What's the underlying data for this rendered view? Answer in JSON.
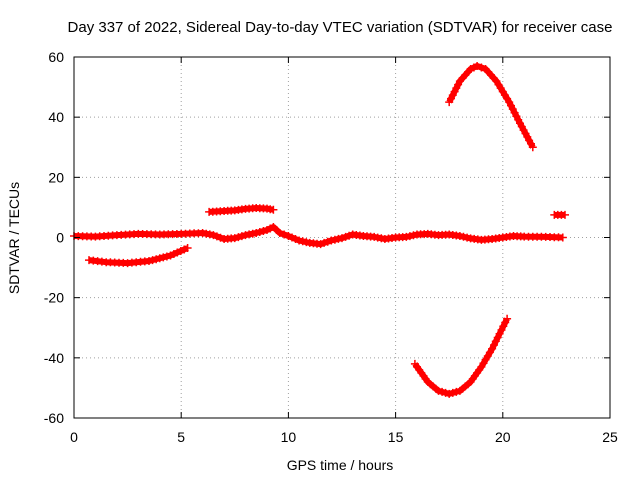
{
  "chart_data": {
    "type": "scatter",
    "title": "Day 337 of 2022, Sidereal Day-to-day VTEC variation (SDTVAR) for receiver case",
    "xlabel": "GPS time / hours",
    "ylabel": "SDTVAR / TECUs",
    "xlim": [
      0,
      25
    ],
    "ylim": [
      -60,
      60
    ],
    "xticks": [
      0,
      5,
      10,
      15,
      20,
      25
    ],
    "yticks": [
      -60,
      -40,
      -20,
      0,
      20,
      40,
      60
    ],
    "grid": true,
    "marker": "plus",
    "colors": {
      "series": "#ff0000",
      "axis": "#000000",
      "grid": "#a0a0a0"
    },
    "series": [
      {
        "name": "near-zero trace",
        "points": [
          [
            0,
            0.5
          ],
          [
            1,
            0.3
          ],
          [
            2,
            0.8
          ],
          [
            3,
            1.2
          ],
          [
            4,
            1.0
          ],
          [
            5,
            1.2
          ],
          [
            6,
            1.5
          ],
          [
            6.5,
            0.8
          ],
          [
            7,
            -0.5
          ],
          [
            7.5,
            -0.2
          ],
          [
            8,
            0.8
          ],
          [
            8.5,
            1.5
          ],
          [
            9,
            2.5
          ],
          [
            9.3,
            3.5
          ],
          [
            9.6,
            1.5
          ],
          [
            10,
            0.5
          ],
          [
            10.5,
            -1.0
          ],
          [
            11,
            -1.8
          ],
          [
            11.5,
            -2.2
          ],
          [
            12,
            -1.0
          ],
          [
            12.5,
            -0.2
          ],
          [
            13,
            1.0
          ],
          [
            13.5,
            0.5
          ],
          [
            14,
            0.2
          ],
          [
            14.5,
            -0.5
          ],
          [
            15,
            0.0
          ],
          [
            15.5,
            0.2
          ],
          [
            16,
            1.0
          ],
          [
            16.5,
            1.2
          ],
          [
            17,
            0.8
          ],
          [
            17.5,
            1.0
          ],
          [
            18,
            0.5
          ],
          [
            18.5,
            -0.3
          ],
          [
            19,
            -0.8
          ],
          [
            19.5,
            -0.5
          ],
          [
            20,
            0.0
          ],
          [
            20.5,
            0.5
          ],
          [
            21,
            0.3
          ],
          [
            22,
            0.2
          ],
          [
            22.8,
            0.0
          ]
        ]
      },
      {
        "name": "negative arc 0.7-5.3h",
        "points": [
          [
            0.7,
            -7.5
          ],
          [
            1.5,
            -8.2
          ],
          [
            2.5,
            -8.5
          ],
          [
            3.5,
            -7.8
          ],
          [
            4.5,
            -6.0
          ],
          [
            5.3,
            -3.5
          ]
        ]
      },
      {
        "name": "positive segment 6.3-9.3h",
        "points": [
          [
            6.3,
            8.5
          ],
          [
            7,
            8.8
          ],
          [
            7.5,
            9.0
          ],
          [
            8,
            9.5
          ],
          [
            8.5,
            9.8
          ],
          [
            9,
            9.6
          ],
          [
            9.3,
            9.2
          ]
        ]
      },
      {
        "name": "upper arc 17.5-21.4h",
        "points": [
          [
            17.5,
            45
          ],
          [
            18,
            52
          ],
          [
            18.5,
            56
          ],
          [
            18.8,
            57
          ],
          [
            19.2,
            56
          ],
          [
            19.7,
            52
          ],
          [
            20.3,
            45
          ],
          [
            20.8,
            38
          ],
          [
            21.4,
            30
          ]
        ]
      },
      {
        "name": "lower arc 15.9-20.2h",
        "points": [
          [
            15.9,
            -42
          ],
          [
            16.5,
            -48
          ],
          [
            17,
            -51
          ],
          [
            17.5,
            -52
          ],
          [
            18,
            -51
          ],
          [
            18.5,
            -48
          ],
          [
            19,
            -43
          ],
          [
            19.5,
            -37
          ],
          [
            20.2,
            -27
          ]
        ]
      },
      {
        "name": "short segment 22.4-22.9h",
        "points": [
          [
            22.4,
            7.5
          ],
          [
            22.9,
            7.5
          ]
        ]
      }
    ]
  }
}
